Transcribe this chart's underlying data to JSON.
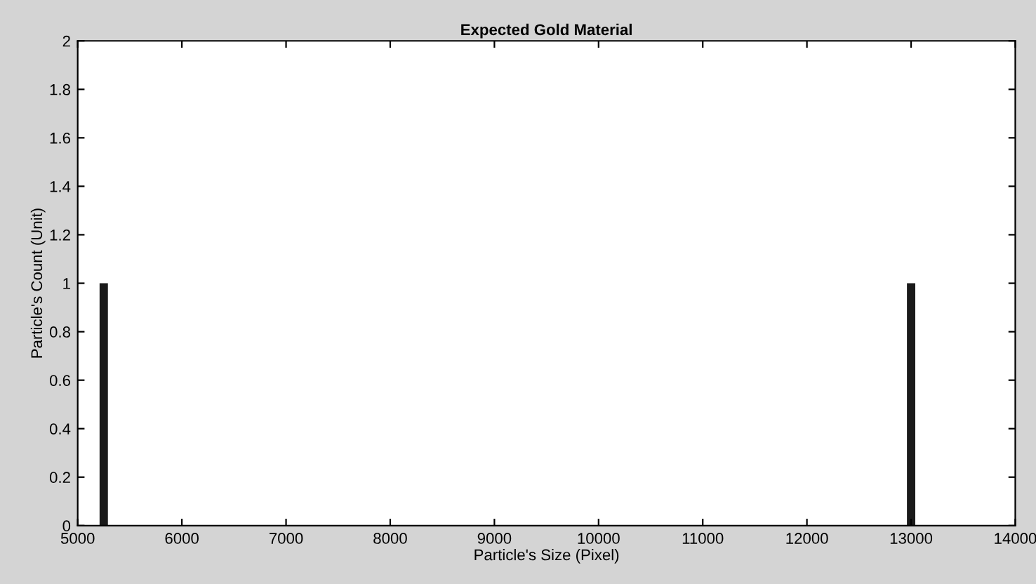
{
  "chart_data": {
    "type": "bar",
    "title": "Expected Gold Material",
    "xlabel": "Particle's Size (Pixel)",
    "ylabel": "Particle's Count (Unit)",
    "x": [
      5250,
      13000
    ],
    "values": [
      1,
      1
    ],
    "color": "#1a1a1a",
    "xlim": [
      5000,
      14000
    ],
    "xticks": [
      5000,
      6000,
      7000,
      8000,
      9000,
      10000,
      11000,
      12000,
      13000,
      14000
    ],
    "ylim": [
      0,
      2
    ],
    "yticks": [
      0,
      0.2,
      0.4,
      0.6,
      0.8,
      1,
      1.2,
      1.4,
      1.6,
      1.8,
      2
    ],
    "grid": false
  }
}
